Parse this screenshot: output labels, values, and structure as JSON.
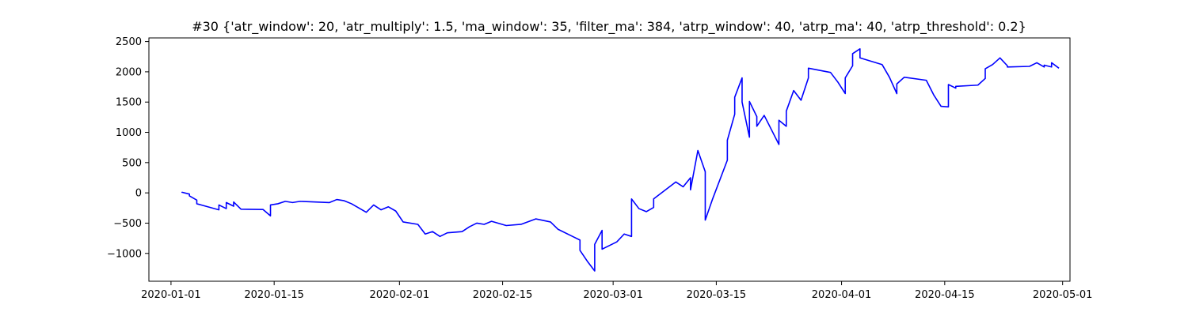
{
  "chart_data": {
    "type": "line",
    "title": "#30 {'atr_window': 20, 'atr_multiply': 1.5, 'ma_window': 35, 'filter_ma': 384, 'atrp_window': 40, 'atrp_ma': 40, 'atrp_threshold': 0.2}",
    "xlabel": "",
    "ylabel": "",
    "grid": false,
    "legend": "none",
    "xlim": [
      "2019-12-29",
      "2020-05-02"
    ],
    "ylim": [
      -1460,
      2560
    ],
    "x_ticks": [
      "2020-01-01",
      "2020-01-15",
      "2020-02-01",
      "2020-02-15",
      "2020-03-01",
      "2020-03-15",
      "2020-04-01",
      "2020-04-15",
      "2020-05-01"
    ],
    "y_ticks": [
      -1000,
      -500,
      0,
      500,
      1000,
      1500,
      2000,
      2500
    ],
    "series": [
      {
        "color": "#0000ff",
        "points": [
          [
            "2020-01-02",
            0
          ],
          [
            "2020-01-02",
            10
          ],
          [
            "2020-01-03",
            -20
          ],
          [
            "2020-01-03",
            -50
          ],
          [
            "2020-01-04",
            -120
          ],
          [
            "2020-01-04",
            -180
          ],
          [
            "2020-01-07",
            -280
          ],
          [
            "2020-01-07",
            -200
          ],
          [
            "2020-01-08",
            -260
          ],
          [
            "2020-01-08",
            -160
          ],
          [
            "2020-01-09",
            -220
          ],
          [
            "2020-01-09",
            -150
          ],
          [
            "2020-01-10",
            -270
          ],
          [
            "2020-01-13",
            -275
          ],
          [
            "2020-01-14",
            -380
          ],
          [
            "2020-01-14",
            -200
          ],
          [
            "2020-01-15",
            -180
          ],
          [
            "2020-01-16",
            -140
          ],
          [
            "2020-01-17",
            -160
          ],
          [
            "2020-01-18",
            -140
          ],
          [
            "2020-01-22",
            -160
          ],
          [
            "2020-01-23",
            -110
          ],
          [
            "2020-01-24",
            -130
          ],
          [
            "2020-01-25",
            -180
          ],
          [
            "2020-01-27",
            -320
          ],
          [
            "2020-01-28",
            -200
          ],
          [
            "2020-01-29",
            -280
          ],
          [
            "2020-01-30",
            -230
          ],
          [
            "2020-01-31",
            -300
          ],
          [
            "2020-02-01",
            -480
          ],
          [
            "2020-02-03",
            -520
          ],
          [
            "2020-02-04",
            -680
          ],
          [
            "2020-02-05",
            -640
          ],
          [
            "2020-02-06",
            -720
          ],
          [
            "2020-02-07",
            -660
          ],
          [
            "2020-02-09",
            -640
          ],
          [
            "2020-02-10",
            -560
          ],
          [
            "2020-02-11",
            -500
          ],
          [
            "2020-02-12",
            -520
          ],
          [
            "2020-02-13",
            -470
          ],
          [
            "2020-02-15",
            -540
          ],
          [
            "2020-02-17",
            -520
          ],
          [
            "2020-02-19",
            -430
          ],
          [
            "2020-02-21",
            -480
          ],
          [
            "2020-02-22",
            -600
          ],
          [
            "2020-02-24",
            -720
          ],
          [
            "2020-02-25",
            -780
          ],
          [
            "2020-02-25",
            -950
          ],
          [
            "2020-02-26",
            -1130
          ],
          [
            "2020-02-27",
            -1290
          ],
          [
            "2020-02-27",
            -850
          ],
          [
            "2020-02-28",
            -620
          ],
          [
            "2020-02-28",
            -930
          ],
          [
            "2020-03-01",
            -810
          ],
          [
            "2020-03-02",
            -680
          ],
          [
            "2020-03-03",
            -720
          ],
          [
            "2020-03-03",
            -320
          ],
          [
            "2020-03-03",
            -100
          ],
          [
            "2020-03-04",
            -260
          ],
          [
            "2020-03-05",
            -310
          ],
          [
            "2020-03-06",
            -240
          ],
          [
            "2020-03-06",
            -100
          ],
          [
            "2020-03-09",
            180
          ],
          [
            "2020-03-10",
            100
          ],
          [
            "2020-03-11",
            250
          ],
          [
            "2020-03-11",
            50
          ],
          [
            "2020-03-12",
            700
          ],
          [
            "2020-03-13",
            350
          ],
          [
            "2020-03-13",
            -110
          ],
          [
            "2020-03-13",
            -450
          ],
          [
            "2020-03-14",
            -100
          ],
          [
            "2020-03-16",
            540
          ],
          [
            "2020-03-16",
            870
          ],
          [
            "2020-03-17",
            1300
          ],
          [
            "2020-03-17",
            1580
          ],
          [
            "2020-03-18",
            1900
          ],
          [
            "2020-03-18",
            1500
          ],
          [
            "2020-03-19",
            920
          ],
          [
            "2020-03-19",
            1510
          ],
          [
            "2020-03-20",
            1260
          ],
          [
            "2020-03-20",
            1100
          ],
          [
            "2020-03-21",
            1280
          ],
          [
            "2020-03-23",
            800
          ],
          [
            "2020-03-23",
            1200
          ],
          [
            "2020-03-24",
            1100
          ],
          [
            "2020-03-24",
            1350
          ],
          [
            "2020-03-25",
            1690
          ],
          [
            "2020-03-26",
            1530
          ],
          [
            "2020-03-27",
            1900
          ],
          [
            "2020-03-27",
            2060
          ],
          [
            "2020-03-30",
            1990
          ],
          [
            "2020-03-31",
            1830
          ],
          [
            "2020-04-01",
            1640
          ],
          [
            "2020-04-01",
            1900
          ],
          [
            "2020-04-02",
            2100
          ],
          [
            "2020-04-02",
            2300
          ],
          [
            "2020-04-03",
            2380
          ],
          [
            "2020-04-03",
            2230
          ],
          [
            "2020-04-06",
            2120
          ],
          [
            "2020-04-07",
            1910
          ],
          [
            "2020-04-08",
            1640
          ],
          [
            "2020-04-08",
            1800
          ],
          [
            "2020-04-09",
            1910
          ],
          [
            "2020-04-12",
            1860
          ],
          [
            "2020-04-13",
            1620
          ],
          [
            "2020-04-14",
            1430
          ],
          [
            "2020-04-15",
            1420
          ],
          [
            "2020-04-15",
            1790
          ],
          [
            "2020-04-16",
            1730
          ],
          [
            "2020-04-16",
            1760
          ],
          [
            "2020-04-19",
            1780
          ],
          [
            "2020-04-20",
            1890
          ],
          [
            "2020-04-20",
            2050
          ],
          [
            "2020-04-21",
            2120
          ],
          [
            "2020-04-22",
            2230
          ],
          [
            "2020-04-23",
            2100
          ],
          [
            "2020-04-23",
            2080
          ],
          [
            "2020-04-26",
            2090
          ],
          [
            "2020-04-27",
            2150
          ],
          [
            "2020-04-28",
            2080
          ],
          [
            "2020-04-28",
            2110
          ],
          [
            "2020-04-29",
            2080
          ],
          [
            "2020-04-29",
            2150
          ],
          [
            "2020-04-30",
            2060
          ]
        ]
      }
    ]
  }
}
